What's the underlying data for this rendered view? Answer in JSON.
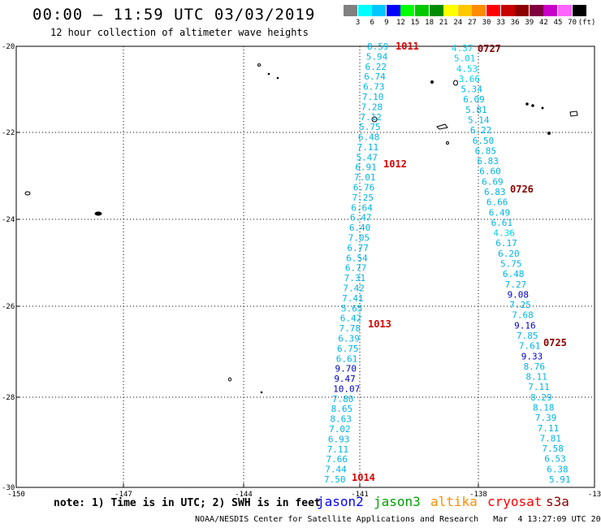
{
  "title": "00:00 – 11:59 UTC 03/03/2019",
  "subtitle": "12 hour collection of altimeter wave heights",
  "colorbar": {
    "unit": "(ft)",
    "labels": [
      "3",
      "6",
      "9",
      "12",
      "15",
      "18",
      "21",
      "24",
      "27",
      "30",
      "33",
      "36",
      "39",
      "42",
      "45",
      "70"
    ],
    "colors": [
      "#808080",
      "#00ffff",
      "#00c8ff",
      "#0000ff",
      "#00ff00",
      "#00c800",
      "#008c00",
      "#ffff00",
      "#ffc800",
      "#ff8c00",
      "#ff0000",
      "#c80000",
      "#8c0000",
      "#800040",
      "#c800c8",
      "#ff64ff",
      "#000000"
    ]
  },
  "axes": {
    "lat_labels": [
      "-20",
      "-22",
      "-24",
      "-26",
      "-28",
      "-30"
    ],
    "lon_labels": [
      "-150",
      "-147",
      "-144",
      "-141",
      "-138",
      "-13"
    ]
  },
  "passes": [
    {
      "label": "1011",
      "color": "#dd0000"
    },
    {
      "label": "1012",
      "color": "#dd0000"
    },
    {
      "label": "1013",
      "color": "#dd0000"
    },
    {
      "label": "1014",
      "color": "#dd0000"
    },
    {
      "label": "0727",
      "color": "#8b0000"
    },
    {
      "label": "0726",
      "color": "#8b0000"
    },
    {
      "label": "0725",
      "color": "#8b0000"
    }
  ],
  "track1": {
    "values": [
      "8.59",
      "5.94",
      "6.22",
      "6.74",
      "6.73",
      "7.10",
      "7.28",
      "7.12",
      "5.75",
      "6.48",
      "7.11",
      "5.47",
      "6.91",
      "7.01",
      "6.76",
      "7.25",
      "6.64",
      "6.47",
      "6.40",
      "7.05",
      "6.77",
      "6.54",
      "6.77",
      "7.31",
      "7.42",
      "7.41",
      "5.65",
      "6.42",
      "7.78",
      "6.39",
      "6.75",
      "6.61",
      "9.70",
      "9.47",
      "10.07",
      "7.80",
      "8.65",
      "8.63",
      "7.02",
      "6.93",
      "7.11",
      "7.66",
      "7.44",
      "7.50"
    ],
    "colors": [
      "#00b4e6",
      "#00b4e6",
      "#00b4e6",
      "#00b4e6",
      "#00b4e6",
      "#00b4e6",
      "#00b4e6",
      "#00b4e6",
      "#00b4e6",
      "#00b4e6",
      "#00b4e6",
      "#00b4e6",
      "#00b4e6",
      "#00b4e6",
      "#00b4e6",
      "#00b4e6",
      "#00b4e6",
      "#00b4e6",
      "#00b4e6",
      "#00b4e6",
      "#00b4e6",
      "#00b4e6",
      "#00b4e6",
      "#00b4e6",
      "#00b4e6",
      "#00b4e6",
      "#00b4e6",
      "#00b4e6",
      "#00b4e6",
      "#00b4e6",
      "#00b4e6",
      "#00b4e6",
      "#0000c0",
      "#0000c0",
      "#0000c0",
      "#00b4e6",
      "#00b4e6",
      "#00b4e6",
      "#00b4e6",
      "#00b4e6",
      "#00b4e6",
      "#00b4e6",
      "#00b4e6",
      "#00b4e6"
    ]
  },
  "track2": {
    "values": [
      "4.37",
      "5.01",
      "4.53",
      "3.66",
      "5.34",
      "6.09",
      "5.81",
      "5.14",
      "6.22",
      "6.50",
      "6.85",
      "6.83",
      "6.60",
      "6.69",
      "6.83",
      "6.66",
      "6.49",
      "6.61",
      "4.36",
      "6.17",
      "6.20",
      "5.75",
      "6.48",
      "7.27",
      "9.08",
      "7.25",
      "7.68",
      "9.16",
      "7.85",
      "7.61",
      "9.33",
      "8.76",
      "8.11",
      "7.11",
      "8.29",
      "8.18",
      "7.39",
      "7.11",
      "7.81",
      "7.58",
      "6.53",
      "6.38",
      "5.91"
    ],
    "colors": [
      "#00d2f0",
      "#00d2f0",
      "#00d2f0",
      "#00d2f0",
      "#00b4e6",
      "#00b4e6",
      "#00b4e6",
      "#00b4e6",
      "#00b4e6",
      "#00b4e6",
      "#00b4e6",
      "#00b4e6",
      "#00b4e6",
      "#00b4e6",
      "#00b4e6",
      "#00b4e6",
      "#00b4e6",
      "#00b4e6",
      "#00d2f0",
      "#00b4e6",
      "#00b4e6",
      "#00b4e6",
      "#00b4e6",
      "#00b4e6",
      "#0000c0",
      "#00b4e6",
      "#00b4e6",
      "#0000c0",
      "#00b4e6",
      "#00b4e6",
      "#0000c0",
      "#00b4e6",
      "#00b4e6",
      "#00b4e6",
      "#00b4e6",
      "#00b4e6",
      "#00b4e6",
      "#00b4e6",
      "#00b4e6",
      "#00b4e6",
      "#00b4e6",
      "#00b4e6",
      "#00b4e6"
    ]
  },
  "note": "note: 1) Time is in UTC; 2) SWH is in feet",
  "legend": [
    {
      "label": "jason2",
      "color": "#0000ff"
    },
    {
      "label": "jason3",
      "color": "#00a000"
    },
    {
      "label": "altika",
      "color": "#ff8c00"
    },
    {
      "label": "cryosat",
      "color": "#ff0000"
    },
    {
      "label": "s3a",
      "color": "#8b0000"
    }
  ],
  "credit": "NOAA/NESDIS Center for Satellite Applications and Research   Mar  4 13:27:09 UTC 2019"
}
